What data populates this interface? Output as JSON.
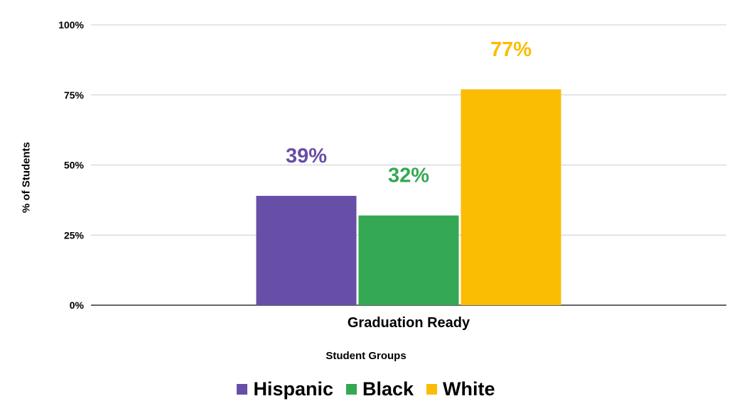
{
  "chart_data": {
    "type": "bar",
    "categories": [
      "Graduation Ready"
    ],
    "series": [
      {
        "name": "Hispanic",
        "values": [
          39
        ],
        "color": "#674ea7",
        "label": "39%"
      },
      {
        "name": "Black",
        "values": [
          32
        ],
        "color": "#34a853",
        "label": "32%"
      },
      {
        "name": "White",
        "values": [
          77
        ],
        "color": "#fbbc04",
        "label": "77%"
      }
    ],
    "xlabel": "Student Groups",
    "ylabel": "% of Students",
    "ylim": [
      0,
      100
    ],
    "yticks": [
      "0%",
      "25%",
      "50%",
      "75%",
      "100%"
    ],
    "grid": true,
    "legend": "bottom"
  }
}
